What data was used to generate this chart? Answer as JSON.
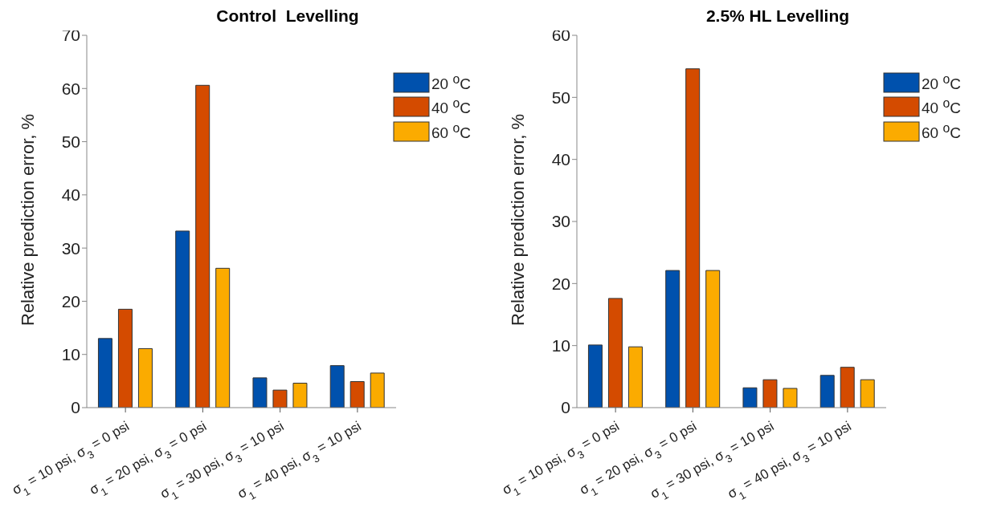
{
  "chart_data": [
    {
      "type": "bar",
      "title": "Control  Levelling",
      "ylabel": "Relative prediction error, %",
      "categories": [
        "σ$_{1}$ = 10 psi, σ$_{3}$ = 0 psi",
        "σ$_{1}$ = 20 psi, σ$_{3}$ = 0 psi",
        "σ$_{1}$ = 30 psi, σ$_{3}$ = 10 psi",
        "σ$_{1}$ = 40 psi, σ$_{3}$ = 10 psi"
      ],
      "ylim": [
        0,
        70
      ],
      "yticks": [
        0,
        10,
        20,
        30,
        40,
        50,
        60,
        70
      ],
      "legend": "top right",
      "series": [
        {
          "name": "20 $^{o}$C",
          "color": "#0051ad",
          "values": [
            13.0,
            33.2,
            5.6,
            7.9
          ]
        },
        {
          "name": "40 $^{o}$C",
          "color": "#d44b00",
          "values": [
            18.5,
            60.6,
            3.3,
            4.9
          ]
        },
        {
          "name": "60 $^{o}$C",
          "color": "#fbab00",
          "values": [
            11.1,
            26.2,
            4.6,
            6.5
          ]
        }
      ]
    },
    {
      "type": "bar",
      "title": "2.5% HL Levelling",
      "ylabel": "Relative prediction error, %",
      "categories": [
        "σ$_{1}$ = 10 psi, σ$_{3}$ = 0 psi",
        "σ$_{1}$ = 20 psi, σ$_{3}$ = 0 psi",
        "σ$_{1}$ = 30 psi, σ$_{3}$ = 10 psi",
        "σ$_{1}$ = 40 psi, σ$_{3}$ = 10 psi"
      ],
      "ylim": [
        0,
        60
      ],
      "yticks": [
        0,
        10,
        20,
        30,
        40,
        50,
        60
      ],
      "legend": "top right",
      "series": [
        {
          "name": "20 $^{o}$C",
          "color": "#0051ad",
          "values": [
            10.1,
            22.1,
            3.2,
            5.2
          ]
        },
        {
          "name": "40 $^{o}$C",
          "color": "#d44b00",
          "values": [
            17.6,
            54.6,
            4.5,
            6.5
          ]
        },
        {
          "name": "60 $^{o}$C",
          "color": "#fbab00",
          "values": [
            9.8,
            22.1,
            3.1,
            4.5
          ]
        }
      ]
    }
  ]
}
